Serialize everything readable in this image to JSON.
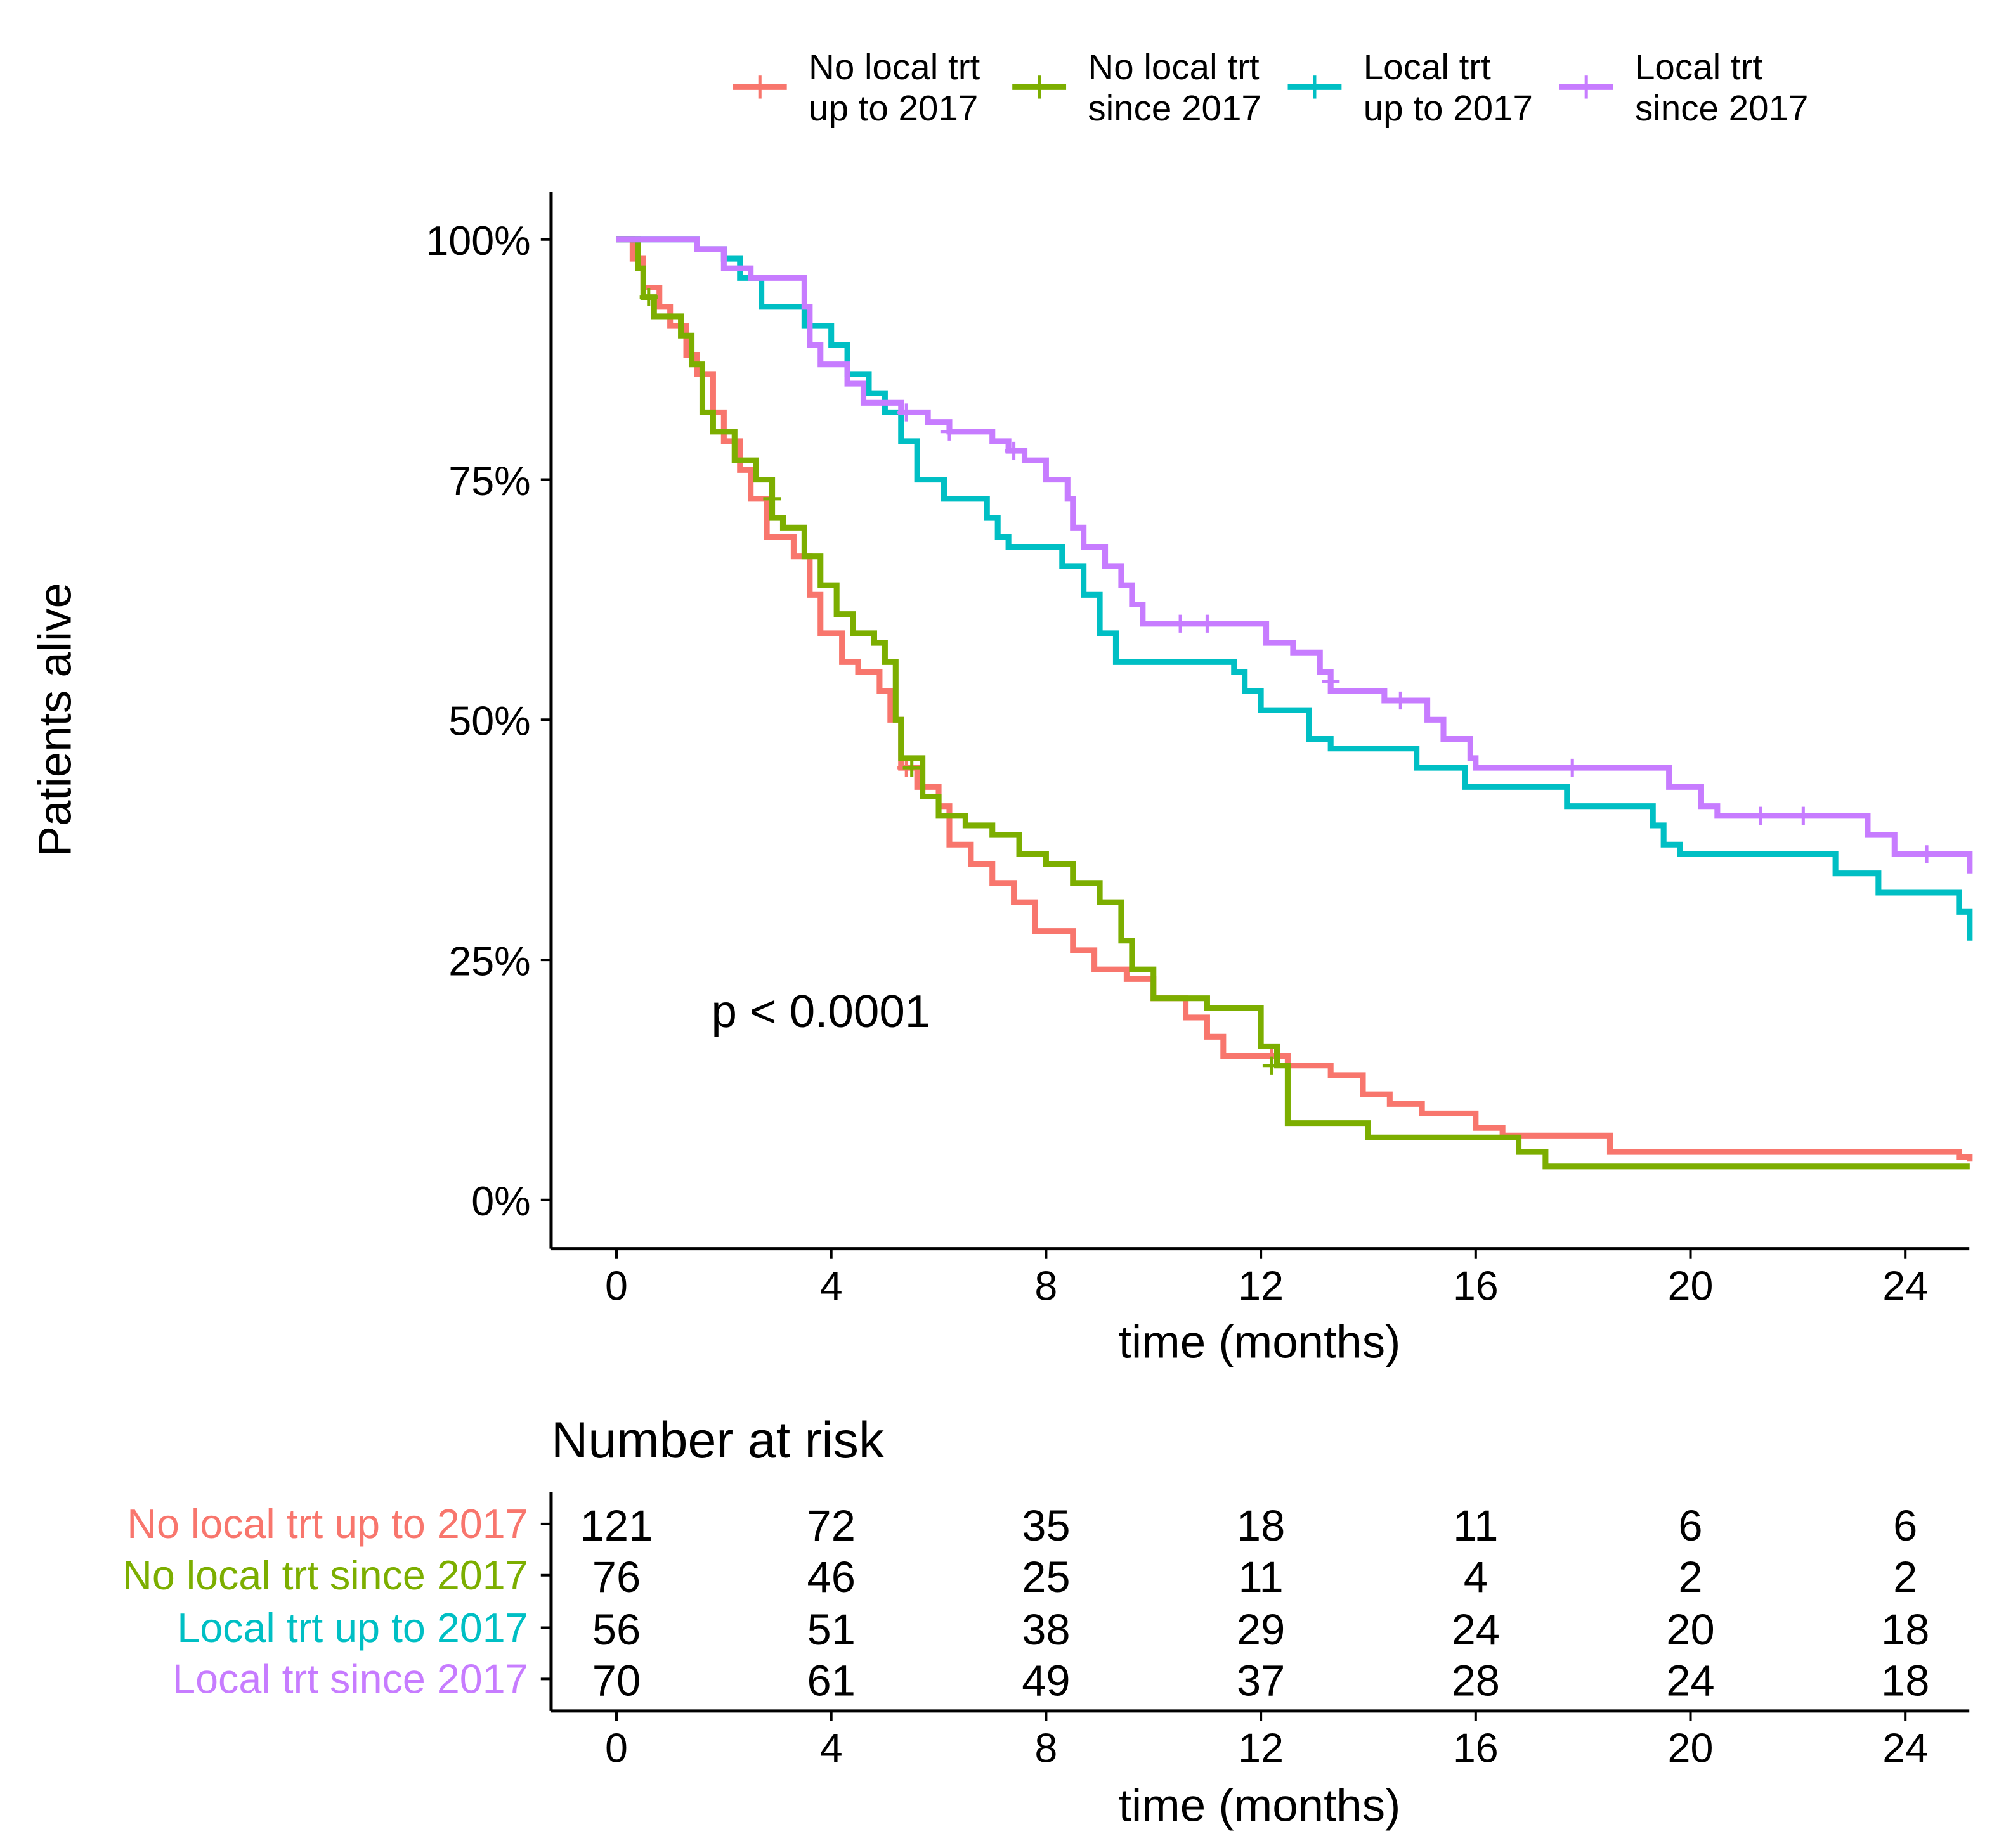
{
  "chart_data": {
    "type": "line",
    "subtype": "kaplan-meier",
    "xlabel": "time (months)",
    "ylabel": "Patients alive",
    "xlim": [
      0,
      25.2
    ],
    "ylim": [
      0,
      100
    ],
    "x_ticks": [
      0,
      4,
      8,
      12,
      16,
      20,
      24
    ],
    "y_ticks": [
      0,
      25,
      50,
      75,
      100
    ],
    "y_tick_labels": [
      "0%",
      "25%",
      "50%",
      "75%",
      "100%"
    ],
    "grid": false,
    "legend_position": "top",
    "annotation": "p < 0.0001",
    "series": [
      {
        "name": "No local trt up to 2017",
        "legend_lines": [
          "No local trt",
          "up to 2017"
        ],
        "color": "#F8766D",
        "steps": [
          [
            0,
            100
          ],
          [
            0.3,
            98
          ],
          [
            0.5,
            95
          ],
          [
            0.8,
            93
          ],
          [
            1.0,
            91
          ],
          [
            1.3,
            88
          ],
          [
            1.5,
            86
          ],
          [
            1.8,
            82
          ],
          [
            2.0,
            79
          ],
          [
            2.3,
            76
          ],
          [
            2.5,
            73
          ],
          [
            2.8,
            69
          ],
          [
            3.3,
            67
          ],
          [
            3.6,
            63
          ],
          [
            3.8,
            59
          ],
          [
            4.2,
            56
          ],
          [
            4.5,
            55
          ],
          [
            4.9,
            53
          ],
          [
            5.1,
            50
          ],
          [
            5.3,
            45
          ],
          [
            5.6,
            43
          ],
          [
            6.0,
            41
          ],
          [
            6.2,
            37
          ],
          [
            6.6,
            35
          ],
          [
            7.0,
            33
          ],
          [
            7.4,
            31
          ],
          [
            7.8,
            28
          ],
          [
            8.5,
            26
          ],
          [
            8.9,
            24
          ],
          [
            9.5,
            23
          ],
          [
            10.0,
            21
          ],
          [
            10.6,
            19
          ],
          [
            11.0,
            17
          ],
          [
            11.3,
            15
          ],
          [
            12.5,
            14
          ],
          [
            13.3,
            13
          ],
          [
            13.9,
            11
          ],
          [
            14.4,
            10
          ],
          [
            15.0,
            9
          ],
          [
            16.0,
            7.5
          ],
          [
            16.5,
            6.7
          ],
          [
            18.5,
            5
          ],
          [
            25.0,
            4.5
          ],
          [
            25.2,
            4
          ]
        ],
        "censored": [
          [
            5.4,
            45
          ],
          [
            12.2,
            15
          ]
        ]
      },
      {
        "name": "No local trt since 2017",
        "legend_lines": [
          "No local trt",
          "since 2017"
        ],
        "color": "#7CAE00",
        "steps": [
          [
            0,
            100
          ],
          [
            0.4,
            97
          ],
          [
            0.5,
            94
          ],
          [
            0.7,
            92
          ],
          [
            1.2,
            90
          ],
          [
            1.4,
            87
          ],
          [
            1.6,
            82
          ],
          [
            1.8,
            80
          ],
          [
            2.2,
            77
          ],
          [
            2.6,
            75
          ],
          [
            2.9,
            71
          ],
          [
            3.1,
            70
          ],
          [
            3.5,
            67
          ],
          [
            3.8,
            64
          ],
          [
            4.1,
            61
          ],
          [
            4.4,
            59
          ],
          [
            4.8,
            58
          ],
          [
            5.0,
            56
          ],
          [
            5.2,
            50
          ],
          [
            5.3,
            46
          ],
          [
            5.7,
            42
          ],
          [
            6.0,
            40
          ],
          [
            6.5,
            39
          ],
          [
            7.0,
            38
          ],
          [
            7.5,
            36
          ],
          [
            8.0,
            35
          ],
          [
            8.5,
            33
          ],
          [
            9.0,
            31
          ],
          [
            9.4,
            27
          ],
          [
            9.6,
            24
          ],
          [
            10.0,
            21
          ],
          [
            11.0,
            20
          ],
          [
            12.0,
            16
          ],
          [
            12.3,
            14
          ],
          [
            12.5,
            8
          ],
          [
            14.0,
            6.5
          ],
          [
            16.8,
            5
          ],
          [
            17.3,
            3.5
          ],
          [
            25.2,
            3.5
          ]
        ],
        "censored": [
          [
            0.6,
            94
          ],
          [
            2.9,
            73
          ],
          [
            5.5,
            45
          ],
          [
            12.2,
            14
          ]
        ]
      },
      {
        "name": "Local trt up to 2017",
        "legend_lines": [
          "Local trt",
          "up to 2017"
        ],
        "color": "#00BFC4",
        "steps": [
          [
            0,
            100
          ],
          [
            1.5,
            99
          ],
          [
            2.0,
            98
          ],
          [
            2.3,
            96
          ],
          [
            2.7,
            93
          ],
          [
            3.5,
            91
          ],
          [
            4.0,
            89
          ],
          [
            4.3,
            86
          ],
          [
            4.7,
            84
          ],
          [
            5.0,
            82
          ],
          [
            5.3,
            79
          ],
          [
            5.6,
            75
          ],
          [
            6.1,
            73
          ],
          [
            6.9,
            71
          ],
          [
            7.1,
            69
          ],
          [
            7.3,
            68
          ],
          [
            8.3,
            66
          ],
          [
            8.7,
            63
          ],
          [
            9.0,
            59
          ],
          [
            9.3,
            56
          ],
          [
            11.5,
            55
          ],
          [
            11.7,
            53
          ],
          [
            12.0,
            51
          ],
          [
            12.9,
            48
          ],
          [
            13.3,
            47
          ],
          [
            14.9,
            45
          ],
          [
            15.8,
            43
          ],
          [
            17.7,
            41
          ],
          [
            19.3,
            39
          ],
          [
            19.5,
            37
          ],
          [
            19.8,
            36
          ],
          [
            22.7,
            34
          ],
          [
            23.5,
            32
          ],
          [
            25.0,
            30
          ],
          [
            25.2,
            27
          ]
        ],
        "censored": []
      },
      {
        "name": "Local trt since 2017",
        "legend_lines": [
          "Local trt",
          "since 2017"
        ],
        "color": "#C77CFF",
        "steps": [
          [
            0,
            100
          ],
          [
            1.5,
            99
          ],
          [
            2.0,
            97
          ],
          [
            2.5,
            96
          ],
          [
            3.5,
            93
          ],
          [
            3.6,
            89
          ],
          [
            3.8,
            87
          ],
          [
            4.3,
            85
          ],
          [
            4.6,
            83
          ],
          [
            5.3,
            82
          ],
          [
            5.8,
            81
          ],
          [
            6.2,
            80
          ],
          [
            7.0,
            79
          ],
          [
            7.3,
            78
          ],
          [
            7.6,
            77
          ],
          [
            8.0,
            75
          ],
          [
            8.4,
            73
          ],
          [
            8.5,
            70
          ],
          [
            8.7,
            68
          ],
          [
            9.1,
            66
          ],
          [
            9.4,
            64
          ],
          [
            9.6,
            62
          ],
          [
            9.8,
            60
          ],
          [
            12.1,
            58
          ],
          [
            12.6,
            57
          ],
          [
            13.1,
            55
          ],
          [
            13.3,
            53
          ],
          [
            14.3,
            52
          ],
          [
            15.1,
            50
          ],
          [
            15.4,
            48
          ],
          [
            15.9,
            46
          ],
          [
            16.0,
            45
          ],
          [
            19.6,
            43
          ],
          [
            20.2,
            41
          ],
          [
            20.5,
            40
          ],
          [
            23.3,
            38
          ],
          [
            23.8,
            36
          ],
          [
            25.2,
            34
          ]
        ],
        "censored": [
          [
            5.4,
            82
          ],
          [
            6.2,
            80
          ],
          [
            7.4,
            78
          ],
          [
            10.5,
            60
          ],
          [
            11.0,
            60
          ],
          [
            13.3,
            54
          ],
          [
            14.6,
            52
          ],
          [
            17.8,
            45
          ],
          [
            21.3,
            40
          ],
          [
            22.1,
            40
          ],
          [
            24.4,
            36
          ]
        ]
      }
    ],
    "risk_table": {
      "title": "Number at risk",
      "xlabel": "time (months)",
      "times": [
        0,
        4,
        8,
        12,
        16,
        20,
        24
      ],
      "rows": [
        {
          "label": "No local trt up to 2017",
          "values": [
            121,
            72,
            35,
            18,
            11,
            6,
            6
          ]
        },
        {
          "label": "No local trt since 2017",
          "values": [
            76,
            46,
            25,
            11,
            4,
            2,
            2
          ]
        },
        {
          "label": "Local trt up to 2017",
          "values": [
            56,
            51,
            38,
            29,
            24,
            20,
            18
          ]
        },
        {
          "label": "Local trt since 2017",
          "values": [
            70,
            61,
            49,
            37,
            28,
            24,
            18
          ]
        }
      ]
    }
  }
}
